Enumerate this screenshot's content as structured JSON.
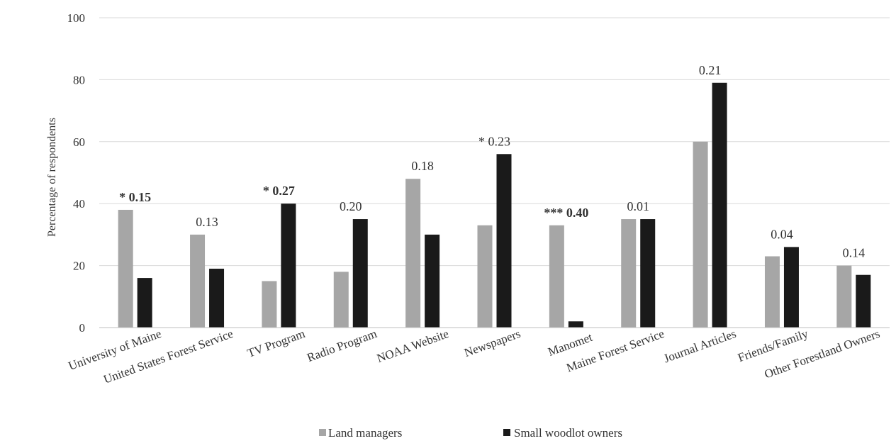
{
  "chart_data": {
    "type": "bar",
    "ylabel": "Percentage of respondents",
    "xlabel": "",
    "ylim": [
      0,
      100
    ],
    "yticks": [
      "0",
      "20",
      "40",
      "60",
      "80",
      "100"
    ],
    "grid": true,
    "legend_position": "bottom",
    "categories": [
      "University of Maine",
      "United States Forest Service",
      "TV Program",
      "Radio Program",
      "NOAA Website",
      "Newspapers",
      "Manomet",
      "Maine Forest Service",
      "Journal Articles",
      "Friends/Family",
      "Other Forestland Owners"
    ],
    "series": [
      {
        "name": "Land managers",
        "color": "#a6a6a6",
        "values": [
          38,
          30,
          15,
          18,
          48,
          33,
          33,
          35,
          60,
          23,
          20
        ]
      },
      {
        "name": "Small woodlot owners",
        "color": "#1a1a1a",
        "values": [
          16,
          19,
          40,
          35,
          30,
          56,
          2,
          35,
          79,
          26,
          17
        ]
      }
    ],
    "annotations": [
      {
        "text": "* 0.15",
        "bold": true
      },
      {
        "text": "0.13",
        "bold": false
      },
      {
        "text": "* 0.27",
        "bold": true
      },
      {
        "text": "0.20",
        "bold": false
      },
      {
        "text": "0.18",
        "bold": false
      },
      {
        "text": "* 0.23",
        "bold": false
      },
      {
        "text": "*** 0.40",
        "bold": true
      },
      {
        "text": "0.01",
        "bold": false
      },
      {
        "text": "0.21",
        "bold": false
      },
      {
        "text": "0.04",
        "bold": false
      },
      {
        "text": "0.14",
        "bold": false
      }
    ]
  }
}
